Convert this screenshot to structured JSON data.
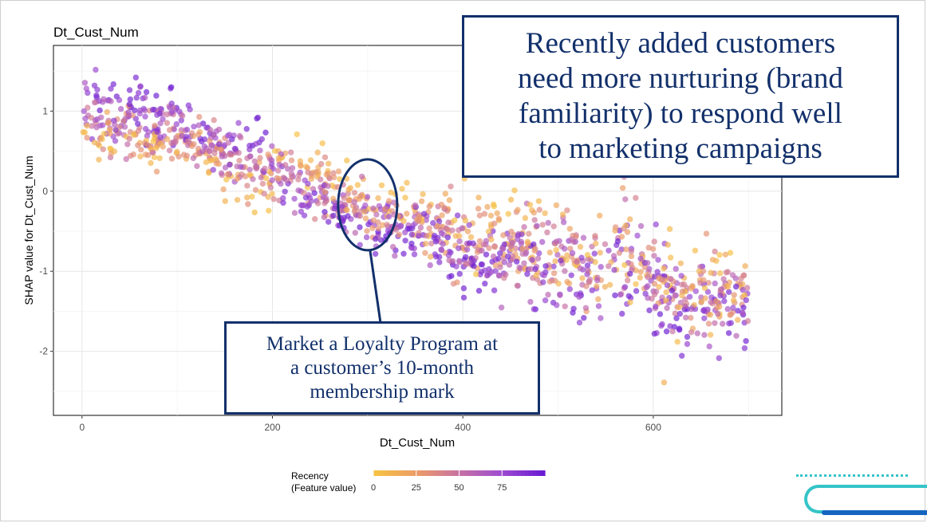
{
  "chart_data": {
    "type": "scatter",
    "title": "Dt_Cust_Num",
    "xlabel": "Dt_Cust_Num",
    "ylabel": "SHAP value for Dt_Cust_Num",
    "xlim": [
      -30,
      735
    ],
    "ylim": [
      -2.8,
      1.82
    ],
    "x_ticks": [
      0,
      200,
      400,
      600
    ],
    "x_tick_labels": [
      "0",
      "200",
      "400",
      "600"
    ],
    "y_ticks": [
      1,
      0,
      -1,
      -2
    ],
    "y_tick_labels": [
      "1",
      "0",
      "-1",
      "-2"
    ],
    "grid": true,
    "legend": {
      "title_line1": "Recency",
      "title_line2": "(Feature value)",
      "placement": "bottom",
      "range": [
        0,
        100
      ],
      "ticks": [
        0,
        25,
        50,
        75
      ],
      "tick_labels": [
        "0",
        "25",
        "50",
        "75"
      ],
      "colors": [
        "#f6c242",
        "#ec9b68",
        "#c872a3",
        "#9f4dd0",
        "#6a1bd3"
      ]
    },
    "trend": [
      [
        0,
        0.9
      ],
      [
        50,
        0.8
      ],
      [
        100,
        0.7
      ],
      [
        140,
        0.5
      ],
      [
        200,
        0.2
      ],
      [
        250,
        0.05
      ],
      [
        300,
        -0.3
      ],
      [
        350,
        -0.4
      ],
      [
        380,
        -0.55
      ],
      [
        400,
        -0.7
      ],
      [
        450,
        -0.7
      ],
      [
        500,
        -0.9
      ],
      [
        550,
        -1.0
      ],
      [
        600,
        -1.1
      ],
      [
        630,
        -1.35
      ],
      [
        660,
        -1.3
      ],
      [
        700,
        -1.35
      ]
    ],
    "n_points": 1400,
    "x_range": [
      0,
      700
    ]
  },
  "annotations": {
    "recent_lines": [
      "Recently added customers",
      "need more nurturing (brand",
      "familiarity) to respond well",
      "to marketing campaigns"
    ],
    "loyalty_lines": [
      "Market a Loyalty Program at",
      "a customer’s 10-month",
      "membership mark"
    ],
    "ellipse_center_x": 300,
    "ellipse_center_y": -0.17
  },
  "colors": {
    "callout_border": "#12306b",
    "callout_text": "#12306b",
    "accent_teal": "#35c4c8",
    "accent_blue": "#1565c0"
  }
}
